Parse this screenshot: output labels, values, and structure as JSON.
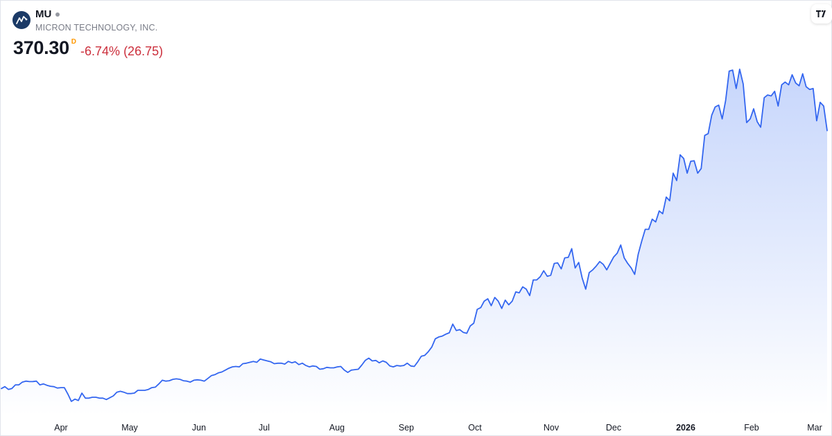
{
  "header": {
    "ticker": "MU",
    "company": "MICRON TECHNOLOGY, INC.",
    "price": "370.30",
    "price_flag": "D",
    "change": "-6.74% (26.75)"
  },
  "colors": {
    "line": "#3366f0",
    "fill_top": "#c4d4fb",
    "fill_bottom": "#ffffff",
    "negative": "#cc2f3c",
    "flag": "#ff9800"
  },
  "chart_data": {
    "type": "area",
    "title": "MU",
    "ylabel": "",
    "xlabel": "",
    "grid": false,
    "x_tick_labels": [
      "Apr",
      "May",
      "Jun",
      "Jul",
      "Aug",
      "Sep",
      "Oct",
      "Nov",
      "Dec",
      "2026",
      "Feb",
      "Mar"
    ],
    "x_tick_year_label": "2026",
    "series": [
      {
        "values": [
          90.0,
          92.0,
          89.0,
          90.0,
          94.0,
          94.0,
          97.0,
          98.0,
          97.5,
          97.6,
          98.0,
          94.0,
          95.0,
          93.5,
          92.5,
          92.0,
          90.5,
          91.0,
          91.0,
          84.0,
          76.0,
          78.5,
          77.0,
          85.0,
          79.5,
          79.5,
          80.5,
          80.5,
          79.5,
          79.5,
          78.0,
          80.0,
          82.0,
          86.0,
          87.0,
          86.0,
          84.5,
          84.5,
          85.0,
          88.0,
          88.0,
          88.0,
          89.0,
          91.0,
          91.5,
          95.0,
          99.0,
          98.0,
          98.5,
          100.0,
          100.5,
          100.0,
          98.5,
          98.0,
          97.0,
          99.0,
          99.5,
          99.0,
          98.0,
          101.0,
          104.0,
          105.0,
          107.0,
          108.0,
          110.0,
          112.0,
          113.5,
          114.0,
          113.5,
          117.0,
          117.5,
          118.5,
          119.5,
          118.5,
          122.0,
          121.0,
          120.0,
          119.0,
          117.0,
          117.5,
          117.5,
          116.5,
          119.5,
          118.0,
          119.0,
          116.0,
          117.5,
          115.0,
          113.5,
          114.5,
          114.0,
          111.0,
          111.5,
          113.0,
          112.5,
          112.5,
          113.5,
          114.0,
          110.0,
          107.5,
          110.0,
          110.5,
          111.0,
          115.5,
          120.5,
          123.0,
          120.0,
          120.5,
          118.0,
          120.0,
          118.5,
          114.5,
          113.5,
          115.0,
          114.5,
          115.0,
          117.5,
          114.5,
          114.0,
          119.0,
          125.0,
          126.0,
          130.0,
          135.0,
          144.0,
          146.0,
          147.0,
          149.0,
          150.5,
          160.0,
          153.0,
          154.0,
          151.0,
          150.0,
          158.0,
          161.0,
          176.0,
          178.0,
          185.0,
          187.5,
          180.0,
          189.0,
          185.0,
          177.0,
          186.0,
          181.0,
          185.0,
          195.0,
          194.0,
          200.5,
          198.0,
          191.0,
          208.0,
          208.0,
          211.5,
          218.0,
          212.0,
          213.0,
          226.0,
          226.5,
          220.0,
          232.0,
          232.5,
          242.0,
          221.0,
          227.0,
          210.0,
          198.0,
          216.0,
          219.0,
          223.0,
          228.0,
          225.0,
          219.0,
          226.0,
          233.0,
          237.0,
          246.0,
          232.0,
          226.0,
          221.0,
          214.0,
          236.0,
          250.0,
          263.0,
          263.0,
          274.0,
          271.0,
          283.0,
          280.0,
          298.0,
          294.0,
          324.0,
          316.0,
          344.0,
          340.0,
          324.0,
          337.0,
          337.5,
          324.0,
          329.0,
          365.0,
          367.0,
          387.0,
          396.0,
          398.0,
          383.0,
          403.0,
          435.0,
          436.0,
          416.0,
          437.0,
          421.0,
          379.0,
          383.0,
          394.0,
          380.0,
          374.0,
          406.0,
          409.0,
          408.0,
          413.0,
          397.0,
          420.0,
          423.0,
          420.0,
          431.0,
          422.0,
          419.0,
          432.0,
          418.0,
          415.0,
          416.0,
          381.0,
          401.0,
          397.0,
          370.3
        ]
      }
    ]
  }
}
